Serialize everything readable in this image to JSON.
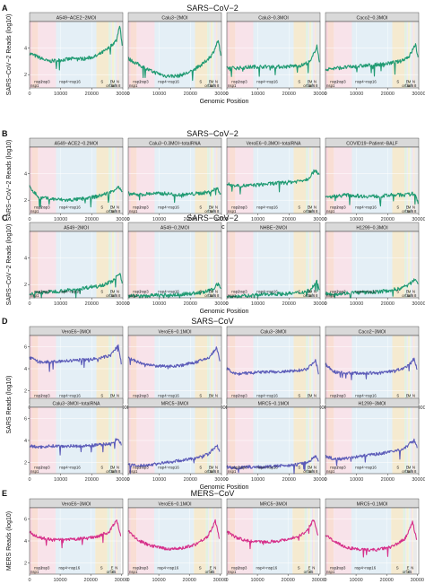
{
  "figure": {
    "colors": {
      "sars2": "#1f9a72",
      "sars": "#5b5bb8",
      "mers": "#d62f8a",
      "strip_bg": "#d9d9d9",
      "panel_bg": "#ffffff",
      "grid": "#e6e6e6",
      "region_colors": {
        "nsp1": "#f3c6d0",
        "nsp2": "#f7d3c6",
        "nsp3": "#f5d9e3",
        "nsp4-nsp16": "#dbe9f3",
        "S": "#f1e3c0",
        "orf3": "#d8ecd8",
        "E": "#e6e0f1",
        "M": "#f2ecc6",
        "orf6": "#dcefe8",
        "orf7": "#e8d7ee",
        "orf8": "#f6e3cc",
        "N": "#e3e3e3"
      }
    },
    "region_labels_sars": [
      "nsp2",
      "nsp3",
      "nsp4~nsp16",
      "S",
      "E",
      "M",
      "N",
      "nsp1",
      "orf3a",
      "orf6",
      "8"
    ],
    "region_labels_mers": [
      "nsp2",
      "nsp3",
      "nsp4~nsp16",
      "S",
      "E",
      "N",
      "nsp1",
      "orf3",
      "4",
      "5"
    ],
    "rows": [
      {
        "letter": "A",
        "title": "SARS−CoV−2",
        "ylabel": "SARS−CoV−2 Reads (log10)",
        "xlabel": "Genomic Position",
        "virus": "sars2",
        "panels": [
          "A549−ACE2−2MOI",
          "Calu3−2MOI",
          "Calu3−0.3MOI",
          "Caco2−0.3MOI"
        ]
      },
      {
        "letter": "B",
        "title": "SARS−CoV−2",
        "ylabel": "SARS−CoV−2 Reads (log10)",
        "xlabel": "Genomic Position",
        "virus": "sars2",
        "panels": [
          "A549−ACE2−0.2MOI",
          "Calu3−0.3MOI−totalRNA",
          "VeroE6−0.3MOI−totalRNA",
          "COVID19−Patient−BALF"
        ]
      },
      {
        "letter": "C",
        "title": "SARS−CoV−2",
        "ylabel": "SARS−CoV−2 Reads (log10)",
        "xlabel": "Genomic Position",
        "virus": "sars2",
        "panels": [
          "A549−2MOI",
          "A549−0.2MOI",
          "NHBE−2MOI",
          "H1299−0.3MOI"
        ]
      },
      {
        "letter": "D",
        "title": "SARS−CoV",
        "ylabel": "SARS Reads (log10)",
        "xlabel": "Genomic Position",
        "virus": "sars",
        "panels": [
          "VeroE6−3MOI",
          "VeroE6−0.1MOI",
          "Calu3−3MOI",
          "Caco2−3MOI",
          "Calu3−3MOI−totalRNA",
          "MRC5−3MOI",
          "MRC5−0.1MOI",
          "H1299−3MOI"
        ]
      },
      {
        "letter": "E",
        "title": "MERS−CoV",
        "ylabel": "MERS Reads (log10)",
        "xlabel": "Genomic Position",
        "virus": "mers",
        "panels": [
          "VeroE6−3MOI",
          "VeroE6−0.1MOI",
          "MRC5−3MOI",
          "MRC5−0.1MOI"
        ]
      }
    ]
  },
  "chart_data": [
    {
      "type": "line",
      "row": "A",
      "title": "A549−ACE2−2MOI",
      "x": [
        0,
        3000,
        6000,
        10000,
        14000,
        18000,
        21500,
        25000,
        28000,
        29000,
        29800
      ],
      "y": [
        3.6,
        3.3,
        3.0,
        3.1,
        3.2,
        3.2,
        3.4,
        3.9,
        4.6,
        5.8,
        4.2
      ],
      "xlim": [
        0,
        30000
      ],
      "ylim": [
        1,
        6
      ],
      "xticks": [
        0,
        10000,
        20000,
        30000
      ],
      "yticks": [
        2,
        4
      ]
    },
    {
      "type": "line",
      "row": "A",
      "title": "Calu3−2MOI",
      "x": [
        0,
        3000,
        7000,
        12000,
        16000,
        20000,
        24000,
        27000,
        29000,
        29800
      ],
      "y": [
        3.2,
        2.8,
        2.3,
        1.9,
        1.9,
        2.2,
        2.8,
        3.5,
        4.6,
        3.3
      ],
      "xlim": [
        0,
        30000
      ],
      "ylim": [
        1,
        6
      ],
      "xticks": [
        0,
        10000,
        20000,
        30000
      ],
      "yticks": [
        2,
        4
      ]
    },
    {
      "type": "line",
      "row": "A",
      "title": "Calu3−0.3MOI",
      "x": [
        0,
        4000,
        9000,
        14000,
        19000,
        24000,
        27000,
        29000,
        29800
      ],
      "y": [
        2.5,
        2.5,
        2.6,
        2.6,
        2.6,
        2.7,
        3.0,
        4.2,
        2.8
      ],
      "xlim": [
        0,
        30000
      ],
      "ylim": [
        1,
        6
      ],
      "xticks": [
        0,
        10000,
        20000,
        30000
      ],
      "yticks": [
        2,
        4
      ]
    },
    {
      "type": "line",
      "row": "A",
      "title": "Caco2−0.3MOI",
      "x": [
        0,
        4000,
        9000,
        14000,
        19000,
        24000,
        27000,
        29000,
        29800
      ],
      "y": [
        2.4,
        2.5,
        2.6,
        2.7,
        2.8,
        3.0,
        3.4,
        4.3,
        3.2
      ],
      "xlim": [
        0,
        30000
      ],
      "ylim": [
        1,
        6
      ],
      "xticks": [
        0,
        10000,
        20000,
        30000
      ],
      "yticks": [
        2,
        4
      ]
    },
    {
      "type": "line",
      "row": "B",
      "title": "A549−ACE2−0.2MOI",
      "x": [
        0,
        3000,
        7000,
        12000,
        17000,
        22000,
        26000,
        28500,
        29800
      ],
      "y": [
        3.0,
        2.2,
        2.1,
        2.0,
        2.1,
        2.3,
        2.6,
        3.0,
        2.6
      ],
      "xlim": [
        0,
        30000
      ],
      "ylim": [
        1,
        6
      ],
      "xticks": [
        0,
        10000,
        20000,
        30000
      ],
      "yticks": [
        2,
        4
      ]
    },
    {
      "type": "line",
      "row": "B",
      "title": "Calu3−0.3MOI−totalRNA",
      "x": [
        0,
        3000,
        7000,
        12000,
        17000,
        22000,
        26000,
        28500,
        29800
      ],
      "y": [
        2.5,
        2.4,
        2.5,
        2.5,
        2.4,
        2.5,
        2.6,
        2.9,
        2.5
      ],
      "xlim": [
        0,
        30000
      ],
      "ylim": [
        1,
        6
      ],
      "xticks": [
        0,
        10000,
        20000,
        30000
      ],
      "yticks": [
        2,
        4
      ]
    },
    {
      "type": "line",
      "row": "B",
      "title": "VeroE6−0.3MOI−totalRNA",
      "x": [
        0,
        3000,
        7000,
        12000,
        17000,
        22000,
        26000,
        28500,
        29800
      ],
      "y": [
        3.2,
        3.1,
        3.1,
        3.2,
        3.3,
        3.4,
        3.6,
        4.3,
        3.9
      ],
      "xlim": [
        0,
        30000
      ],
      "ylim": [
        1,
        6
      ],
      "xticks": [
        0,
        10000,
        20000,
        30000
      ],
      "yticks": [
        2,
        4
      ]
    },
    {
      "type": "line",
      "row": "B",
      "title": "COVID19−Patient−BALF",
      "x": [
        0,
        3000,
        7000,
        12000,
        17000,
        22000,
        26000,
        28500,
        29800
      ],
      "y": [
        2.2,
        2.3,
        2.4,
        2.3,
        2.3,
        2.4,
        2.4,
        2.5,
        1.9
      ],
      "xlim": [
        0,
        30000
      ],
      "ylim": [
        1,
        6
      ],
      "xticks": [
        0,
        10000,
        20000,
        30000
      ],
      "yticks": [
        2,
        4
      ]
    },
    {
      "type": "line",
      "row": "C",
      "title": "A549−2MOI",
      "x": [
        0,
        4000,
        9000,
        14000,
        19000,
        24000,
        27000,
        29000,
        29800
      ],
      "y": [
        1.3,
        1.4,
        1.5,
        1.6,
        1.8,
        2.0,
        2.3,
        2.9,
        2.2
      ],
      "xlim": [
        0,
        30000
      ],
      "ylim": [
        1,
        6
      ],
      "xticks": [
        0,
        10000,
        20000,
        30000
      ],
      "yticks": [
        2,
        4
      ]
    },
    {
      "type": "line",
      "row": "C",
      "title": "A549−0.2MOI",
      "x": [
        0,
        4000,
        9000,
        14000,
        19000,
        24000,
        27000,
        29000,
        29800
      ],
      "y": [
        1.2,
        1.1,
        1.2,
        1.2,
        1.3,
        1.4,
        1.6,
        2.1,
        1.6
      ],
      "xlim": [
        0,
        30000
      ],
      "ylim": [
        1,
        6
      ],
      "xticks": [
        0,
        10000,
        20000,
        30000
      ],
      "yticks": [
        2,
        4
      ]
    },
    {
      "type": "line",
      "row": "C",
      "title": "NHBE−2MOI",
      "x": [
        0,
        4000,
        9000,
        14000,
        19000,
        24000,
        27000,
        29000,
        29800
      ],
      "y": [
        1.1,
        1.1,
        1.2,
        1.3,
        1.3,
        1.4,
        1.6,
        2.3,
        1.5
      ],
      "xlim": [
        0,
        30000
      ],
      "ylim": [
        1,
        6
      ],
      "xticks": [
        0,
        10000,
        20000,
        30000
      ],
      "yticks": [
        2,
        4
      ]
    },
    {
      "type": "line",
      "row": "C",
      "title": "H1299−0.3MOI",
      "x": [
        0,
        4000,
        9000,
        14000,
        19000,
        24000,
        27000,
        29000,
        29800
      ],
      "y": [
        1.3,
        1.3,
        1.4,
        1.4,
        1.5,
        1.7,
        2.0,
        2.5,
        1.9
      ],
      "xlim": [
        0,
        30000
      ],
      "ylim": [
        1,
        6
      ],
      "xticks": [
        0,
        10000,
        20000,
        30000
      ],
      "yticks": [
        2,
        4
      ]
    },
    {
      "type": "line",
      "row": "D",
      "title": "VeroE6−3MOI",
      "x": [
        0,
        3000,
        7000,
        12000,
        17000,
        22000,
        26000,
        28500,
        29500
      ],
      "y": [
        5.0,
        4.6,
        4.6,
        4.7,
        4.8,
        4.9,
        5.2,
        6.1,
        4.5
      ],
      "xlim": [
        0,
        30000
      ],
      "ylim": [
        1,
        7
      ],
      "xticks": [
        0,
        10000,
        20000,
        30000
      ],
      "yticks": [
        2,
        4,
        6
      ]
    },
    {
      "type": "line",
      "row": "D",
      "title": "VeroE6−0.1MOI",
      "x": [
        0,
        3000,
        7000,
        12000,
        17000,
        22000,
        26000,
        28500,
        29500
      ],
      "y": [
        5.0,
        4.6,
        4.3,
        4.2,
        4.3,
        4.6,
        5.0,
        5.9,
        4.6
      ],
      "xlim": [
        0,
        30000
      ],
      "ylim": [
        1,
        7
      ],
      "xticks": [
        0,
        10000,
        20000,
        30000
      ],
      "yticks": [
        2,
        4,
        6
      ]
    },
    {
      "type": "line",
      "row": "D",
      "title": "Calu3−3MOI",
      "x": [
        0,
        3000,
        7000,
        12000,
        17000,
        22000,
        26000,
        28500,
        29500
      ],
      "y": [
        4.0,
        3.5,
        3.6,
        3.7,
        3.7,
        3.8,
        4.0,
        4.8,
        3.6
      ],
      "xlim": [
        0,
        30000
      ],
      "ylim": [
        1,
        7
      ],
      "xticks": [
        0,
        10000,
        20000,
        30000
      ],
      "yticks": [
        2,
        4,
        6
      ]
    },
    {
      "type": "line",
      "row": "D",
      "title": "Caco2−3MOI",
      "x": [
        0,
        3000,
        7000,
        12000,
        17000,
        22000,
        26000,
        28500,
        29500
      ],
      "y": [
        4.4,
        3.7,
        3.6,
        3.6,
        3.6,
        3.8,
        4.1,
        4.9,
        3.9
      ],
      "xlim": [
        0,
        30000
      ],
      "ylim": [
        1,
        7
      ],
      "xticks": [
        0,
        10000,
        20000,
        30000
      ],
      "yticks": [
        2,
        4,
        6
      ]
    },
    {
      "type": "line",
      "row": "D",
      "title": "Calu3−3MOI−totalRNA",
      "x": [
        0,
        3000,
        7000,
        12000,
        17000,
        22000,
        26000,
        28500,
        29500
      ],
      "y": [
        3.5,
        3.4,
        3.5,
        3.5,
        3.5,
        3.6,
        3.7,
        4.2,
        3.6
      ],
      "xlim": [
        0,
        30000
      ],
      "ylim": [
        1,
        7
      ],
      "xticks": [
        0,
        10000,
        20000,
        30000
      ],
      "yticks": [
        2,
        4,
        6
      ]
    },
    {
      "type": "line",
      "row": "D",
      "title": "MRC5−3MOI",
      "x": [
        0,
        3000,
        7000,
        12000,
        17000,
        22000,
        26000,
        28500,
        29500
      ],
      "y": [
        1.8,
        1.7,
        1.8,
        2.0,
        2.2,
        2.4,
        2.8,
        3.6,
        2.9
      ],
      "xlim": [
        0,
        30000
      ],
      "ylim": [
        1,
        7
      ],
      "xticks": [
        0,
        10000,
        20000,
        30000
      ],
      "yticks": [
        2,
        4,
        6
      ]
    },
    {
      "type": "line",
      "row": "D",
      "title": "MRC5−0.1MOI",
      "x": [
        0,
        3000,
        7000,
        12000,
        17000,
        22000,
        26000,
        28500,
        29500
      ],
      "y": [
        1.6,
        1.5,
        1.6,
        1.6,
        1.7,
        1.8,
        2.0,
        2.6,
        2.1
      ],
      "xlim": [
        0,
        30000
      ],
      "ylim": [
        1,
        7
      ],
      "xticks": [
        0,
        10000,
        20000,
        30000
      ],
      "yticks": [
        2,
        4,
        6
      ]
    },
    {
      "type": "line",
      "row": "D",
      "title": "H1299−3MOI",
      "x": [
        0,
        3000,
        7000,
        12000,
        17000,
        22000,
        26000,
        28500,
        29500
      ],
      "y": [
        2.6,
        2.3,
        2.4,
        2.6,
        2.8,
        3.0,
        3.4,
        4.1,
        3.3
      ],
      "xlim": [
        0,
        30000
      ],
      "ylim": [
        1,
        7
      ],
      "xticks": [
        0,
        10000,
        20000,
        30000
      ],
      "yticks": [
        2,
        4,
        6
      ]
    },
    {
      "type": "line",
      "row": "E",
      "title": "VeroE6−3MOI",
      "x": [
        0,
        3000,
        7000,
        12000,
        17000,
        22000,
        26000,
        28500,
        29800
      ],
      "y": [
        4.8,
        4.3,
        4.1,
        4.1,
        4.2,
        4.4,
        4.8,
        5.9,
        4.5
      ],
      "xlim": [
        0,
        30500
      ],
      "ylim": [
        1,
        7
      ],
      "xticks": [
        0,
        10000,
        20000,
        30000
      ],
      "yticks": [
        2,
        4,
        6
      ]
    },
    {
      "type": "line",
      "row": "E",
      "title": "VeroE6−0.1MOI",
      "x": [
        0,
        3000,
        7000,
        12000,
        17000,
        22000,
        26000,
        28500,
        29800
      ],
      "y": [
        4.9,
        4.1,
        3.6,
        3.3,
        3.3,
        3.7,
        4.4,
        5.8,
        4.2
      ],
      "xlim": [
        0,
        30500
      ],
      "ylim": [
        1,
        7
      ],
      "xticks": [
        0,
        10000,
        20000,
        30000
      ],
      "yticks": [
        2,
        4,
        6
      ]
    },
    {
      "type": "line",
      "row": "E",
      "title": "MRC5−3MOI",
      "x": [
        0,
        3000,
        7000,
        12000,
        17000,
        22000,
        26000,
        28500,
        29800
      ],
      "y": [
        4.9,
        4.3,
        4.0,
        3.9,
        4.0,
        4.3,
        4.8,
        6.0,
        4.4
      ],
      "xlim": [
        0,
        30500
      ],
      "ylim": [
        1,
        7
      ],
      "xticks": [
        0,
        10000,
        20000,
        30000
      ],
      "yticks": [
        2,
        4,
        6
      ]
    },
    {
      "type": "line",
      "row": "E",
      "title": "MRC5−0.1MOI",
      "x": [
        0,
        3000,
        7000,
        12000,
        17000,
        22000,
        26000,
        28500,
        29800
      ],
      "y": [
        4.6,
        3.9,
        3.4,
        3.2,
        3.2,
        3.5,
        4.2,
        5.7,
        4.1
      ],
      "xlim": [
        0,
        30500
      ],
      "ylim": [
        1,
        7
      ],
      "xticks": [
        0,
        10000,
        20000,
        30000
      ],
      "yticks": [
        2,
        4,
        6
      ]
    }
  ]
}
